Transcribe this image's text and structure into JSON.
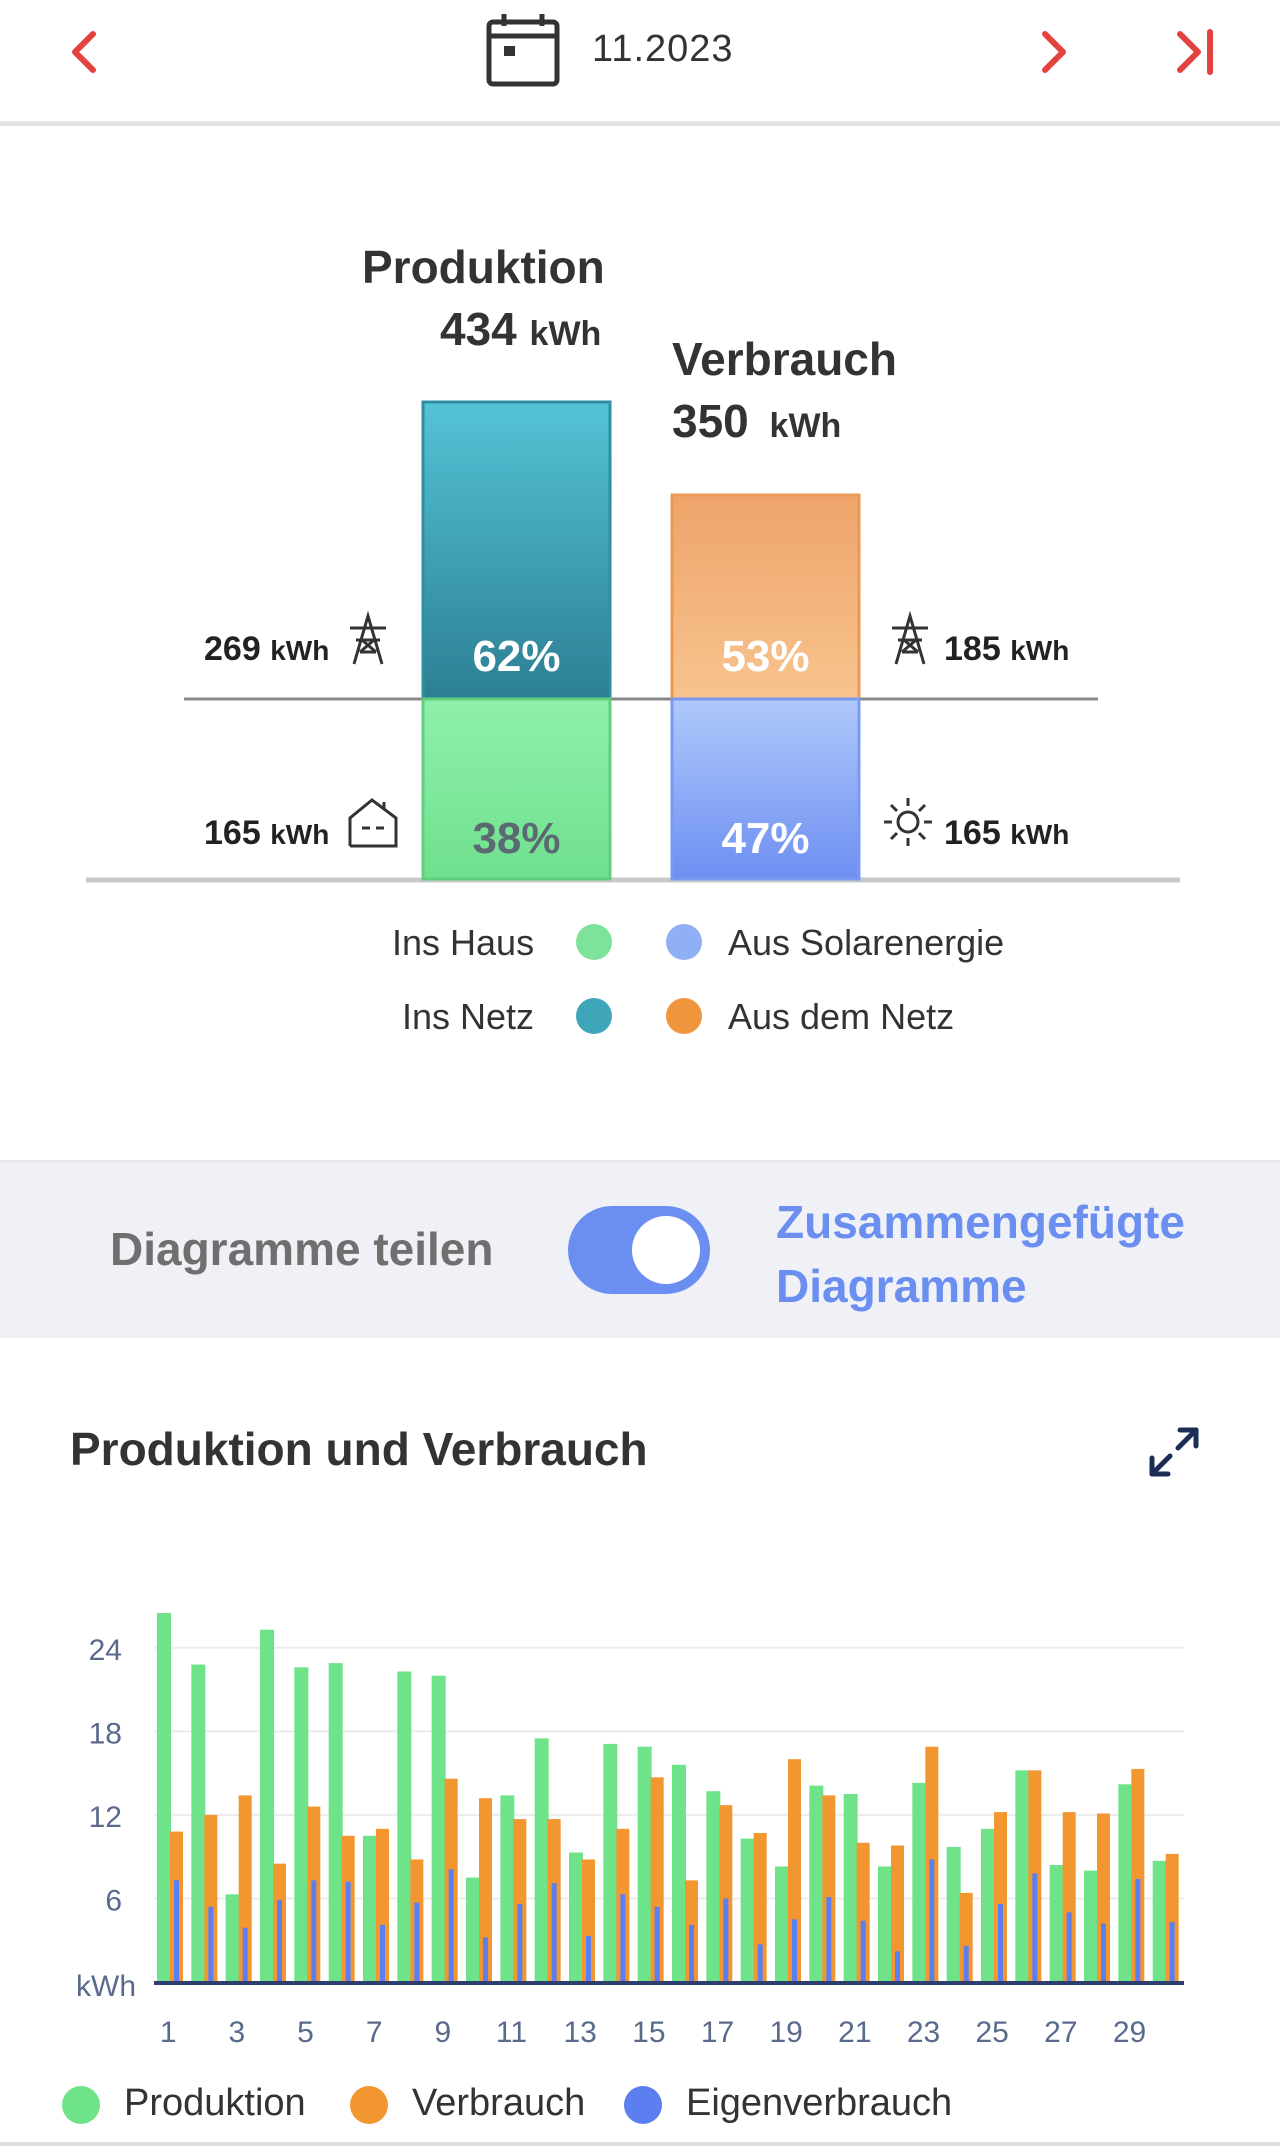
{
  "header": {
    "date": "11.2023",
    "icons": {
      "prev": "chevron-left-icon",
      "calendar": "calendar-icon",
      "next": "chevron-right-icon",
      "last": "skip-to-end-icon"
    }
  },
  "summary": {
    "production": {
      "label": "Produktion",
      "value": "434",
      "unit": "kWh"
    },
    "consumption": {
      "label": "Verbrauch",
      "value": "350",
      "unit": "kWh"
    },
    "production_grid_value": "269",
    "production_grid_unit": "kWh",
    "production_house_value": "165",
    "production_house_unit": "kWh",
    "consumption_grid_value": "185",
    "consumption_grid_unit": "kWh",
    "consumption_solar_value": "165",
    "consumption_solar_unit": "kWh",
    "production_grid_pct": "62%",
    "production_house_pct": "38%",
    "consumption_grid_pct": "53%",
    "consumption_solar_pct": "47%",
    "production_grid_fraction": 0.62,
    "consumption_grid_fraction": 0.53,
    "colors": {
      "ins_haus": "#7ee39a",
      "ins_netz": "#3fa5b8",
      "aus_solar": "#8fb0f5",
      "aus_netz": "#f0953b"
    }
  },
  "legend": {
    "ins_haus": "Ins Haus",
    "ins_netz": "Ins Netz",
    "aus_solar": "Aus Solarenergie",
    "aus_netz": "Aus dem Netz"
  },
  "toggle": {
    "left_label": "Diagramme teilen",
    "right_label_line1": "Zusammengefügte",
    "right_label_line2": "Diagramme",
    "state": "on"
  },
  "chart": {
    "title": "Produktion und Verbrauch",
    "expand_icon": "expand-icon"
  },
  "chart_data": {
    "type": "bar",
    "ylabel": "kWh",
    "ylim": [
      0,
      26.5
    ],
    "yticks": [
      6,
      12,
      18,
      24
    ],
    "grid": true,
    "legend_position": "bottom",
    "categories": [
      "1",
      "2",
      "3",
      "4",
      "5",
      "6",
      "7",
      "8",
      "9",
      "10",
      "11",
      "12",
      "13",
      "14",
      "15",
      "16",
      "17",
      "18",
      "19",
      "20",
      "21",
      "22",
      "23",
      "24",
      "25",
      "26",
      "27",
      "28",
      "29",
      "30"
    ],
    "x_tick_labels": [
      "1",
      "3",
      "5",
      "7",
      "9",
      "11",
      "13",
      "15",
      "17",
      "19",
      "21",
      "23",
      "25",
      "27",
      "29"
    ],
    "series": [
      {
        "name": "Produktion",
        "color": "#6fe38a",
        "values": [
          26.5,
          22.8,
          6.3,
          25.3,
          22.6,
          22.9,
          10.5,
          22.3,
          22.0,
          7.5,
          13.4,
          17.5,
          9.3,
          17.1,
          16.9,
          15.6,
          13.7,
          10.3,
          8.3,
          14.1,
          13.5,
          8.3,
          14.3,
          9.7,
          11.0,
          15.2,
          8.4,
          8.0,
          14.2,
          8.7
        ]
      },
      {
        "name": "Verbrauch",
        "color": "#f2962f",
        "values": [
          10.8,
          12.0,
          13.4,
          8.5,
          12.6,
          10.5,
          11.0,
          8.8,
          14.6,
          13.2,
          11.7,
          11.7,
          8.8,
          11.0,
          14.7,
          7.3,
          12.7,
          10.7,
          16.0,
          13.4,
          10.0,
          9.8,
          16.9,
          6.4,
          12.2,
          15.2,
          12.2,
          12.1,
          15.3,
          9.2
        ]
      },
      {
        "name": "Eigenverbrauch",
        "color": "#5b7ef0",
        "values": [
          7.3,
          5.4,
          3.9,
          5.9,
          7.3,
          7.2,
          4.1,
          5.7,
          8.1,
          3.2,
          5.6,
          7.1,
          3.3,
          6.3,
          5.4,
          4.1,
          6.0,
          2.7,
          4.5,
          6.1,
          4.4,
          2.2,
          8.8,
          2.6,
          5.6,
          7.8,
          5.0,
          4.2,
          7.4,
          4.3
        ]
      }
    ]
  }
}
